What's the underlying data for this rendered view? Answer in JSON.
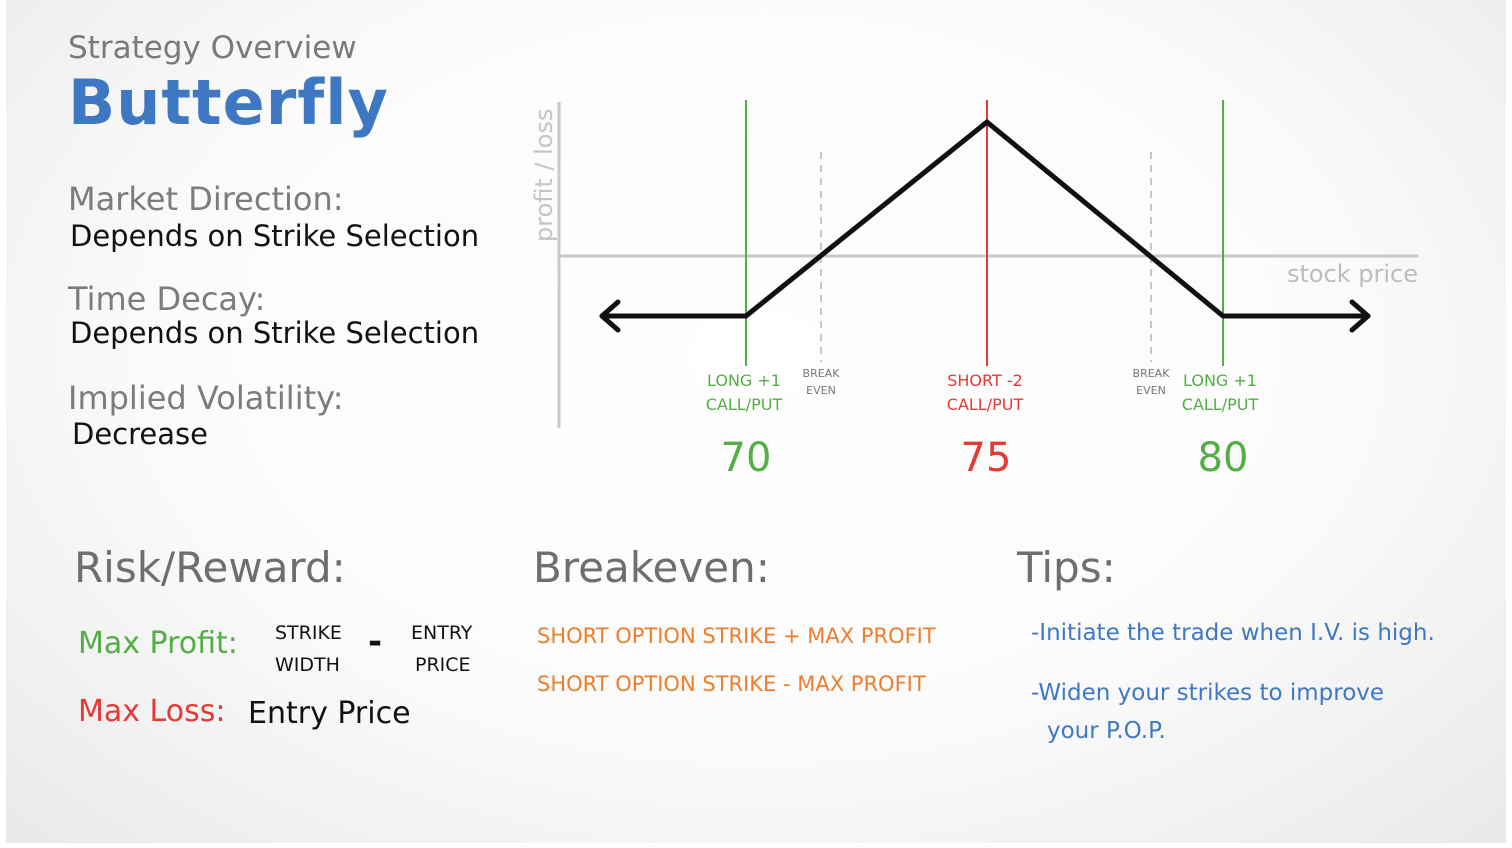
{
  "header": {
    "subtitle": "Strategy Overview",
    "title": "Butterfly"
  },
  "attributes": [
    {
      "label": "Market Direction:",
      "value": "Depends on Strike Selection"
    },
    {
      "label": "Time Decay:",
      "value": "Depends on Strike Selection"
    },
    {
      "label": "Implied Volatility:",
      "value": "Decrease"
    }
  ],
  "diagram": {
    "y_axis_label": "profit / loss",
    "x_axis_label": "stock price",
    "strikes": [
      {
        "line1": "LONG +1",
        "line2": "CALL/PUT",
        "price": "70",
        "color": "#54ad46"
      },
      {
        "line1": "SHORT -2",
        "line2": "CALL/PUT",
        "price": "75",
        "color": "#e53935"
      },
      {
        "line1": "LONG +1",
        "line2": "CALL/PUT",
        "price": "80",
        "color": "#54ad46"
      }
    ],
    "breakeven_label_line1": "BREAK",
    "breakeven_label_line2": "EVEN"
  },
  "risk_reward": {
    "heading": "Risk/Reward:",
    "max_profit_label": "Max Profit:",
    "strike_width_line1": "STRIKE",
    "strike_width_line2": "WIDTH",
    "minus": "-",
    "entry_price_line1": "ENTRY",
    "entry_price_line2": "PRICE",
    "max_loss_label": "Max Loss:",
    "max_loss_value": "Entry Price"
  },
  "breakeven": {
    "heading": "Breakeven:",
    "line1": "SHORT OPTION STRIKE + MAX PROFIT",
    "line2": "SHORT OPTION STRIKE - MAX PROFIT"
  },
  "tips": {
    "heading": "Tips:",
    "tip1": "-Initiate the trade when I.V. is high.",
    "tip2_line1": "-Widen your strikes to improve",
    "tip2_line2": "your P.O.P."
  },
  "colors": {
    "accent_blue": "#3f78c2",
    "green": "#54ad46",
    "red": "#e53935",
    "orange": "#ef7d2d"
  }
}
